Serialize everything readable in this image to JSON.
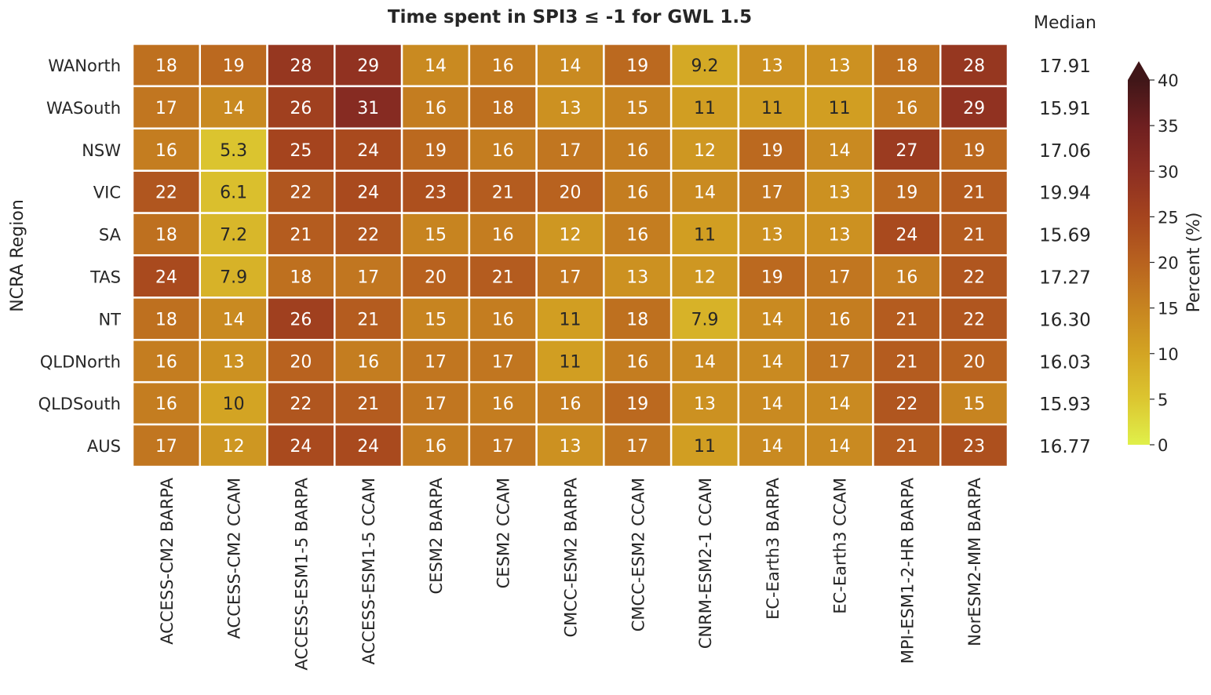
{
  "chart_data": {
    "type": "heatmap",
    "title": "Time spent in SPI3 ≤ -1 for GWL 1.5",
    "ylabel": "NCRA Region",
    "xlabel": "",
    "median_label": "Median",
    "colorbar_label": "Percent (%)",
    "colorbar_range": [
      0,
      40
    ],
    "colorbar_ticks": [
      0,
      5,
      10,
      15,
      20,
      25,
      30,
      35,
      40
    ],
    "colorbar_extend": "max",
    "colormap_stops": [
      "#e0f04a",
      "#dcc630",
      "#d3a423",
      "#c78420",
      "#b8621f",
      "#a5441e",
      "#8c2e22",
      "#6e1f20",
      "#401618"
    ],
    "columns": [
      "ACCESS-CM2 BARPA",
      "ACCESS-CM2 CCAM",
      "ACCESS-ESM1-5 BARPA",
      "ACCESS-ESM1-5 CCAM",
      "CESM2 BARPA",
      "CESM2 CCAM",
      "CMCC-ESM2 BARPA",
      "CMCC-ESM2 CCAM",
      "CNRM-ESM2-1 CCAM",
      "EC-Earth3 BARPA",
      "EC-Earth3 CCAM",
      "MPI-ESM1-2-HR BARPA",
      "NorESM2-MM BARPA"
    ],
    "rows": [
      "WANorth",
      "WASouth",
      "NSW",
      "VIC",
      "SA",
      "TAS",
      "NT",
      "QLDNorth",
      "QLDSouth",
      "AUS"
    ],
    "values": [
      [
        18,
        19,
        28,
        29,
        14,
        16,
        14,
        19,
        9.2,
        13,
        13,
        18,
        28
      ],
      [
        17,
        14,
        26,
        31,
        16,
        18,
        13,
        15,
        11,
        11,
        11,
        16,
        29
      ],
      [
        16,
        5.3,
        25,
        24,
        19,
        16,
        17,
        16,
        12,
        19,
        14,
        27,
        19
      ],
      [
        22,
        6.1,
        22,
        24,
        23,
        21,
        20,
        16,
        14,
        17,
        13,
        19,
        21
      ],
      [
        18,
        7.2,
        21,
        22,
        15,
        16,
        12,
        16,
        11,
        13,
        13,
        24,
        21
      ],
      [
        24,
        7.9,
        18,
        17,
        20,
        21,
        17,
        13,
        12,
        19,
        17,
        16,
        22
      ],
      [
        18,
        14,
        26,
        21,
        15,
        16,
        11,
        18,
        7.9,
        14,
        16,
        21,
        22
      ],
      [
        16,
        13,
        20,
        16,
        17,
        17,
        11,
        16,
        14,
        14,
        17,
        21,
        20
      ],
      [
        16,
        10,
        22,
        21,
        17,
        16,
        16,
        19,
        13,
        14,
        14,
        22,
        15
      ],
      [
        17,
        12,
        24,
        24,
        16,
        17,
        13,
        17,
        11,
        14,
        14,
        21,
        23
      ]
    ],
    "medians": [
      "17.91",
      "15.91",
      "17.06",
      "19.94",
      "15.69",
      "17.27",
      "16.30",
      "16.03",
      "15.93",
      "16.77"
    ]
  }
}
